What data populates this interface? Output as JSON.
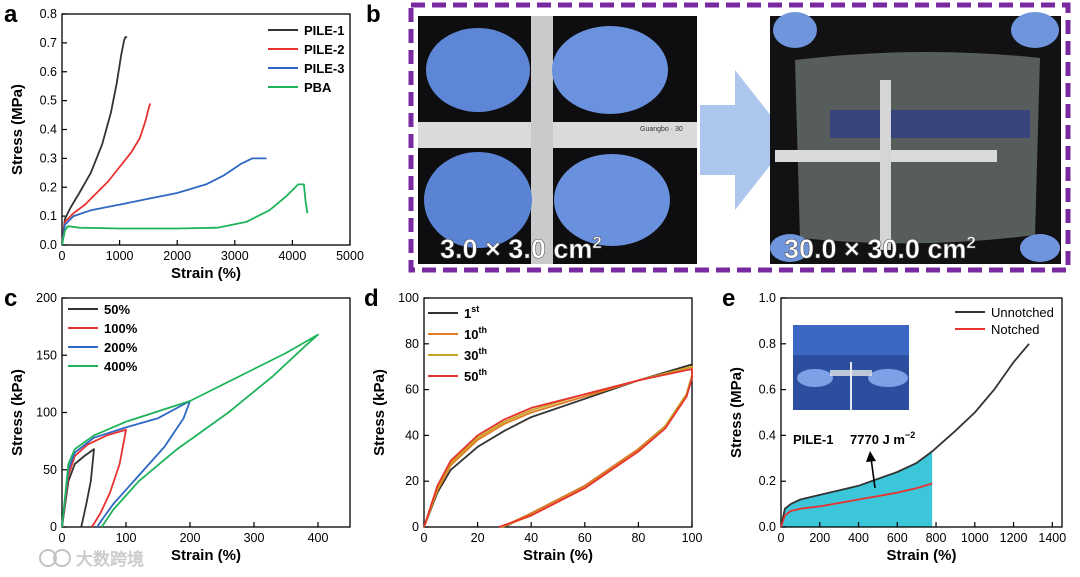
{
  "panel_labels": {
    "a": "a",
    "b": "b",
    "c": "c",
    "d": "d",
    "e": "e"
  },
  "watermark": "大数跨境",
  "chart_data": [
    {
      "id": "a",
      "type": "line",
      "xlabel": "Strain (%)",
      "ylabel": "Stress (MPa)",
      "xlim": [
        0,
        5000
      ],
      "ylim": [
        0,
        0.8
      ],
      "xticks": [
        0,
        1000,
        2000,
        3000,
        4000,
        5000
      ],
      "xtick_labels": [
        "0",
        "1000",
        "2000",
        "3000",
        "4000",
        "5000"
      ],
      "yticks": [
        0,
        0.1,
        0.2,
        0.3,
        0.4,
        0.5,
        0.6,
        0.7,
        0.8
      ],
      "ytick_labels": [
        "0.0",
        "0.1",
        "0.2",
        "0.3",
        "0.4",
        "0.5",
        "0.6",
        "0.7",
        "0.8"
      ],
      "legend_position": "top-right",
      "series": [
        {
          "name": "PILE-1",
          "color": "#333333",
          "x": [
            0,
            50,
            150,
            300,
            500,
            700,
            850,
            950,
            1030,
            1080,
            1100,
            1130
          ],
          "y": [
            0,
            0.09,
            0.13,
            0.18,
            0.25,
            0.35,
            0.46,
            0.56,
            0.66,
            0.71,
            0.72,
            0.72
          ]
        },
        {
          "name": "PILE-2",
          "color": "#e8322f",
          "x": [
            0,
            50,
            200,
            400,
            600,
            800,
            1000,
            1200,
            1350,
            1450,
            1500,
            1530
          ],
          "y": [
            0,
            0.08,
            0.11,
            0.14,
            0.18,
            0.22,
            0.27,
            0.32,
            0.37,
            0.43,
            0.47,
            0.49
          ]
        },
        {
          "name": "PILE-3",
          "color": "#2e67c4",
          "x": [
            0,
            50,
            200,
            500,
            1000,
            1500,
            2000,
            2500,
            2800,
            3100,
            3300,
            3450,
            3550
          ],
          "y": [
            0,
            0.07,
            0.1,
            0.12,
            0.14,
            0.16,
            0.18,
            0.21,
            0.24,
            0.28,
            0.3,
            0.3,
            0.3
          ]
        },
        {
          "name": "PBA",
          "color": "#1fb35a",
          "x": [
            0,
            50,
            100,
            300,
            1000,
            2000,
            2700,
            3200,
            3600,
            3900,
            4100,
            4200,
            4230,
            4260
          ],
          "y": [
            0,
            0.05,
            0.065,
            0.06,
            0.057,
            0.057,
            0.06,
            0.08,
            0.12,
            0.17,
            0.21,
            0.21,
            0.15,
            0.11
          ]
        }
      ]
    },
    {
      "id": "c",
      "type": "line",
      "xlabel": "Strain (%)",
      "ylabel": "Stress (kPa)",
      "xlim": [
        0,
        450
      ],
      "ylim": [
        0,
        200
      ],
      "xticks": [
        0,
        100,
        200,
        300,
        400
      ],
      "xtick_labels": [
        "0",
        "100",
        "200",
        "300",
        "400"
      ],
      "yticks": [
        0,
        50,
        100,
        150,
        200
      ],
      "ytick_labels": [
        "0",
        "50",
        "100",
        "150",
        "200"
      ],
      "legend_position": "top-left",
      "series": [
        {
          "name": "50%",
          "color": "#333333",
          "x": [
            0,
            10,
            20,
            35,
            50,
            45,
            38,
            32,
            30
          ],
          "y": [
            0,
            40,
            55,
            62,
            68,
            40,
            20,
            5,
            0
          ]
        },
        {
          "name": "100%",
          "color": "#e8322f",
          "x": [
            0,
            10,
            20,
            40,
            70,
            100,
            90,
            75,
            60,
            50,
            46
          ],
          "y": [
            0,
            45,
            62,
            72,
            80,
            85,
            55,
            30,
            12,
            3,
            0
          ]
        },
        {
          "name": "200%",
          "color": "#2e67c4",
          "x": [
            0,
            10,
            20,
            50,
            100,
            150,
            200,
            190,
            160,
            120,
            80,
            62,
            55
          ],
          "y": [
            0,
            50,
            65,
            78,
            87,
            95,
            110,
            95,
            70,
            45,
            20,
            6,
            0
          ]
        },
        {
          "name": "400%",
          "color": "#1fb35a",
          "x": [
            0,
            10,
            20,
            50,
            100,
            200,
            300,
            350,
            400,
            380,
            330,
            260,
            180,
            120,
            80,
            62
          ],
          "y": [
            0,
            55,
            68,
            80,
            92,
            110,
            138,
            152,
            168,
            158,
            132,
            100,
            68,
            40,
            15,
            0
          ]
        }
      ]
    },
    {
      "id": "d",
      "type": "line",
      "xlabel": "Strain (%)",
      "ylabel": "Stress (kPa)",
      "xlim": [
        0,
        100
      ],
      "ylim": [
        0,
        100
      ],
      "xticks": [
        0,
        20,
        40,
        60,
        80,
        100
      ],
      "xtick_labels": [
        "0",
        "20",
        "40",
        "60",
        "80",
        "100"
      ],
      "yticks": [
        0,
        20,
        40,
        60,
        80,
        100
      ],
      "ytick_labels": [
        "0",
        "20",
        "40",
        "60",
        "80",
        "100"
      ],
      "legend_position": "top-left",
      "series": [
        {
          "name": "1",
          "sup": "st",
          "color": "#333333",
          "x": [
            0,
            5,
            10,
            20,
            30,
            40,
            60,
            80,
            100,
            100,
            98,
            90,
            80,
            60,
            40,
            30
          ],
          "y": [
            0,
            15,
            25,
            35,
            42,
            48,
            56,
            64,
            71,
            66,
            58,
            44,
            34,
            18,
            6,
            0
          ]
        },
        {
          "name": "10",
          "sup": "th",
          "color": "#e07b20",
          "x": [
            0,
            5,
            10,
            20,
            30,
            40,
            60,
            80,
            100,
            100,
            98,
            90,
            80,
            60,
            40,
            29
          ],
          "y": [
            0,
            16,
            27,
            38,
            45,
            50,
            57,
            64,
            70,
            66,
            58,
            44,
            34,
            18,
            6,
            0
          ]
        },
        {
          "name": "30",
          "sup": "th",
          "color": "#c9a322",
          "x": [
            0,
            5,
            10,
            20,
            30,
            40,
            60,
            80,
            100,
            100,
            98,
            90,
            80,
            60,
            40,
            29
          ],
          "y": [
            0,
            17,
            28,
            39,
            46,
            51,
            58,
            64,
            70,
            66,
            58,
            44,
            33,
            17,
            5,
            0
          ]
        },
        {
          "name": "50",
          "sup": "th",
          "color": "#e8322f",
          "x": [
            0,
            5,
            10,
            20,
            30,
            40,
            60,
            80,
            100,
            100,
            98,
            90,
            80,
            60,
            40,
            28
          ],
          "y": [
            0,
            18,
            29,
            40,
            47,
            52,
            58,
            64,
            69,
            65,
            57,
            43,
            33,
            17,
            5,
            0
          ]
        }
      ]
    },
    {
      "id": "e",
      "type": "line",
      "xlabel": "Strain (%)",
      "ylabel": "Stress (MPa)",
      "xlim": [
        0,
        1450
      ],
      "ylim": [
        0,
        1.0
      ],
      "xticks": [
        0,
        200,
        400,
        600,
        800,
        1000,
        1200,
        1400
      ],
      "xtick_labels": [
        "0",
        "200",
        "400",
        "600",
        "800",
        "1000",
        "1200",
        "1400"
      ],
      "yticks": [
        0,
        0.2,
        0.4,
        0.6,
        0.8,
        1.0
      ],
      "ytick_labels": [
        "0.0",
        "0.2",
        "0.4",
        "0.6",
        "0.8",
        "1.0"
      ],
      "legend_position": "top-right",
      "annotation_text": "PILE-1",
      "annotation_value": "7770 J m",
      "annotation_sup": "−2",
      "fill_upto_x": 780,
      "series": [
        {
          "name": "Unnotched",
          "color": "#333333",
          "x": [
            0,
            20,
            50,
            100,
            200,
            300,
            400,
            500,
            600,
            700,
            780,
            900,
            1000,
            1100,
            1200,
            1280
          ],
          "y": [
            0,
            0.08,
            0.1,
            0.12,
            0.14,
            0.16,
            0.18,
            0.21,
            0.24,
            0.28,
            0.33,
            0.42,
            0.5,
            0.6,
            0.72,
            0.8
          ]
        },
        {
          "name": "Notched",
          "color": "#e8322f",
          "x": [
            0,
            20,
            50,
            100,
            200,
            300,
            400,
            500,
            600,
            700,
            780
          ],
          "y": [
            0,
            0.05,
            0.07,
            0.08,
            0.09,
            0.105,
            0.12,
            0.135,
            0.15,
            0.17,
            0.19
          ]
        }
      ]
    }
  ],
  "photo_b": {
    "left_caption": "3.0 × 3.0 cm",
    "left_sup": "2",
    "right_caption": "30.0 × 30.0 cm",
    "right_sup": "2",
    "ruler_text": "Guangbo · 30"
  }
}
